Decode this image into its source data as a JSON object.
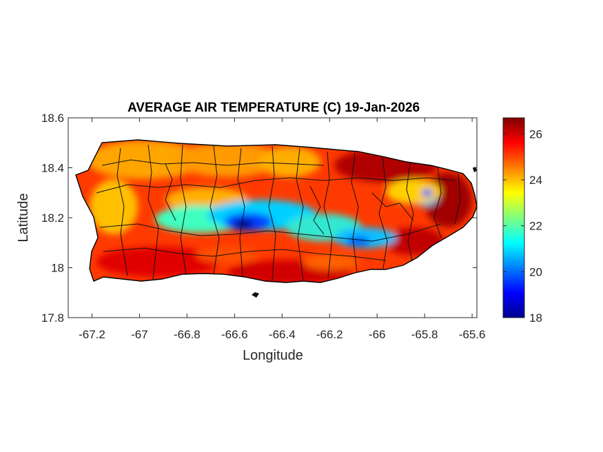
{
  "map": {
    "title": "AVERAGE AIR TEMPERATURE (C) 19-Jan-2026",
    "xlabel": "Longitude",
    "ylabel": "Latitude",
    "x_range": [
      -67.3,
      -65.58
    ],
    "y_range": [
      17.8,
      18.6
    ],
    "x_ticks": [
      "-67.2",
      "-67",
      "-66.8",
      "-66.6",
      "-66.4",
      "-66.2",
      "-66",
      "-65.8",
      "-65.6"
    ],
    "x_tick_values": [
      -67.2,
      -67.0,
      -66.8,
      -66.6,
      -66.4,
      -66.2,
      -66.0,
      -65.8,
      -65.6
    ],
    "y_ticks": [
      "18.6",
      "18.4",
      "18.2",
      "18"
    ],
    "y_tick_values": [
      18.6,
      18.4,
      18.2,
      18.0
    ],
    "y_tick_bottom": "17.8",
    "colorbar": {
      "ticks": [
        "26",
        "24",
        "22",
        "20",
        "18"
      ],
      "tick_values": [
        26,
        24,
        22,
        20,
        18
      ],
      "range": [
        18,
        26.7
      ],
      "colormap": "jet"
    },
    "region": "Puerto Rico",
    "colors": {
      "border": "#000000",
      "jet_low": "#00008f",
      "jet_high": "#800000"
    }
  }
}
